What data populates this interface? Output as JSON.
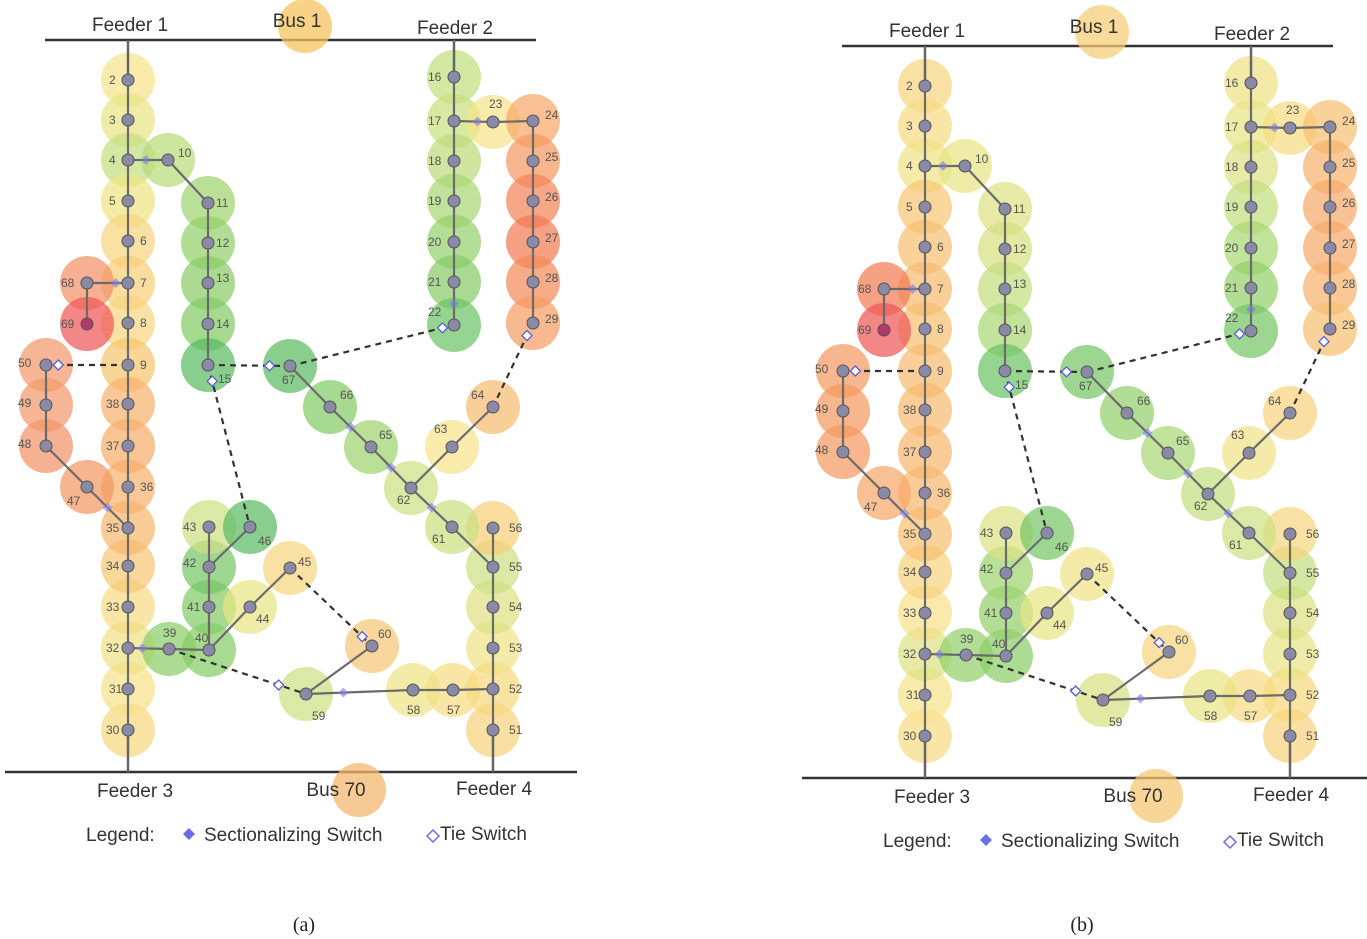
{
  "panels": [
    {
      "id": "a",
      "caption": "(a)",
      "feeder1": "Feeder 1",
      "feeder2": "Feeder 2",
      "feeder3": "Feeder 3",
      "feeder4": "Feeder 4",
      "bus_top": "Bus 1",
      "bus_bottom": "Bus 70",
      "legend_title": "Legend:",
      "legend_sectionalizing": "Sectionalizing Switch",
      "legend_tie": "Tie Switch",
      "node_colors": {
        "1": "#f6c35f",
        "2": "#f6e38a",
        "3": "#e7e485",
        "4": "#c5df7f",
        "5": "#ede585",
        "6": "#f6d67f",
        "7": "#f6cf79",
        "8": "#f6d780",
        "9": "#f6c66f",
        "10": "#b9dc7c",
        "11": "#9fd470",
        "12": "#94d06b",
        "13": "#8acd68",
        "14": "#85cb66",
        "15": "#5dbb63",
        "16": "#c2df7d",
        "17": "#c9e07f",
        "18": "#bcdb7c",
        "19": "#a8d773",
        "20": "#95d16c",
        "21": "#88cc68",
        "22": "#6ec366",
        "23": "#f6e38a",
        "24": "#f6a86a",
        "25": "#f49a61",
        "26": "#f2855a",
        "27": "#f27c55",
        "28": "#f38a5b",
        "29": "#f59e65",
        "30": "#f6d880",
        "31": "#f6e08a",
        "32": "#f0e286",
        "33": "#f6dd83",
        "34": "#f6c876",
        "35": "#f6b86f",
        "36": "#f6b36d",
        "37": "#f6ad6b",
        "38": "#f6b36d",
        "39": "#8ccf6a",
        "40": "#86cd67",
        "41": "#83cc67",
        "42": "#76c666",
        "43": "#cde183",
        "44": "#e7e485",
        "45": "#f6d67f",
        "46": "#5cbb63",
        "47": "#f39764",
        "48": "#f2936a",
        "49": "#f29a6c",
        "50": "#f29a6c",
        "51": "#f6d37d",
        "52": "#f6d880",
        "53": "#f1e387",
        "54": "#dce283",
        "55": "#cde183",
        "56": "#f6cf79",
        "57": "#f6dc82",
        "58": "#eee386",
        "59": "#cde183",
        "60": "#f6c876",
        "61": "#cbe081",
        "62": "#cde183",
        "63": "#f6e38a",
        "64": "#f6bd72",
        "65": "#9fd470",
        "66": "#83cc67",
        "67": "#5dbb63",
        "68": "#f49266",
        "69": "#ee5858",
        "70": "#f6b86f"
      }
    },
    {
      "id": "b",
      "caption": "(b)",
      "feeder1": "Feeder 1",
      "feeder2": "Feeder 2",
      "feeder3": "Feeder 3",
      "feeder4": "Feeder 4",
      "bus_top": "Bus 1",
      "bus_bottom": "Bus 70",
      "legend_title": "Legend:",
      "legend_sectionalizing": "Sectionalizing Switch",
      "legend_tie": "Tie Switch",
      "node_colors": {
        "1": "#f6cf79",
        "2": "#f6d67f",
        "3": "#f6dd83",
        "4": "#f1e387",
        "5": "#f6c876",
        "6": "#f6c072",
        "7": "#f6bb70",
        "8": "#f6c072",
        "9": "#f6bb70",
        "10": "#e7e485",
        "11": "#dce283",
        "12": "#d6e182",
        "13": "#c5df7f",
        "14": "#aad874",
        "15": "#6ec366",
        "16": "#f0e286",
        "17": "#e7e485",
        "18": "#dce283",
        "19": "#c5df7f",
        "20": "#aad874",
        "21": "#94d06b",
        "22": "#76c666",
        "23": "#f6dd83",
        "24": "#f6c072",
        "25": "#f6b36d",
        "26": "#f6ab6b",
        "27": "#f6ab6b",
        "28": "#f6b36d",
        "29": "#f6c072",
        "30": "#f6dd83",
        "31": "#f6e38a",
        "32": "#dce283",
        "33": "#f6e08a",
        "34": "#f6d37d",
        "35": "#f6c072",
        "36": "#f6b86f",
        "37": "#f6b86f",
        "38": "#f6bb70",
        "39": "#94d06b",
        "40": "#8ccf6a",
        "41": "#94d06b",
        "42": "#9fd470",
        "43": "#dce283",
        "44": "#e7e485",
        "45": "#f1e387",
        "46": "#76c666",
        "47": "#f6a86a",
        "48": "#f49a61",
        "49": "#f49a61",
        "50": "#f49a61",
        "51": "#f6d37d",
        "52": "#f6d880",
        "53": "#e7e485",
        "54": "#dce283",
        "55": "#c5df7f",
        "56": "#f6d67f",
        "57": "#f6dd83",
        "58": "#e7e485",
        "59": "#d6e182",
        "60": "#f6d67f",
        "61": "#cde183",
        "62": "#c5df7f",
        "63": "#f1e387",
        "64": "#f6d37d",
        "65": "#aad874",
        "66": "#94d06b",
        "67": "#76c666",
        "68": "#f27c55",
        "69": "#ee5858",
        "70": "#f6c876"
      }
    }
  ]
}
